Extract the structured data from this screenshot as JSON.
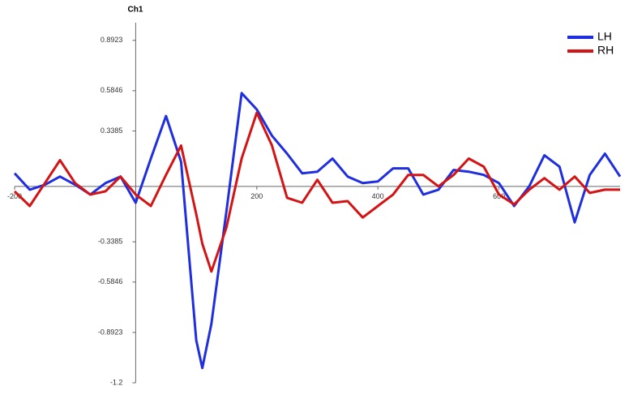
{
  "chart_data": {
    "type": "line",
    "title": "Ch1",
    "x": [
      -200,
      -175,
      -150,
      -125,
      -100,
      -75,
      -50,
      -25,
      0,
      25,
      50,
      75,
      100,
      110,
      125,
      150,
      175,
      200,
      225,
      250,
      275,
      300,
      325,
      350,
      375,
      400,
      425,
      450,
      475,
      500,
      525,
      550,
      575,
      600,
      625,
      650,
      675,
      700,
      725,
      750,
      775,
      800
    ],
    "series": [
      {
        "name": "LH",
        "color": "#1f2fe0",
        "values": [
          0.08,
          -0.02,
          0.01,
          0.06,
          0.01,
          -0.05,
          0.02,
          0.06,
          -0.1,
          0.17,
          0.43,
          0.15,
          -0.94,
          -1.11,
          -0.84,
          -0.15,
          0.57,
          0.47,
          0.31,
          0.2,
          0.08,
          0.09,
          0.17,
          0.06,
          0.02,
          0.03,
          0.11,
          0.11,
          -0.05,
          -0.02,
          0.1,
          0.09,
          0.07,
          0.02,
          -0.12,
          0,
          0.19,
          0.12,
          -0.22,
          0.07,
          0.2,
          0.06
        ]
      },
      {
        "name": "RH",
        "color": "#d41414",
        "values": [
          -0.03,
          -0.12,
          0.02,
          0.16,
          0.02,
          -0.05,
          -0.03,
          0.06,
          -0.05,
          -0.12,
          0.07,
          0.25,
          -0.17,
          -0.35,
          -0.52,
          -0.25,
          0.17,
          0.45,
          0.25,
          -0.07,
          -0.1,
          0.04,
          -0.1,
          -0.09,
          -0.19,
          -0.12,
          -0.05,
          0.07,
          0.07,
          0,
          0.07,
          0.17,
          0.12,
          -0.05,
          -0.11,
          -0.02,
          0.05,
          -0.02,
          0.06,
          -0.04,
          -0.02,
          -0.02
        ]
      }
    ],
    "xlim": [
      -200,
      800
    ],
    "xticks": [
      -200,
      200,
      400,
      600
    ],
    "ylim": [
      -1.2,
      1.0
    ],
    "yticks": [
      0.8923,
      0.5846,
      0.3385,
      -0.3385,
      -0.5846,
      -0.8923,
      -1.2
    ],
    "legend": "upper right"
  }
}
